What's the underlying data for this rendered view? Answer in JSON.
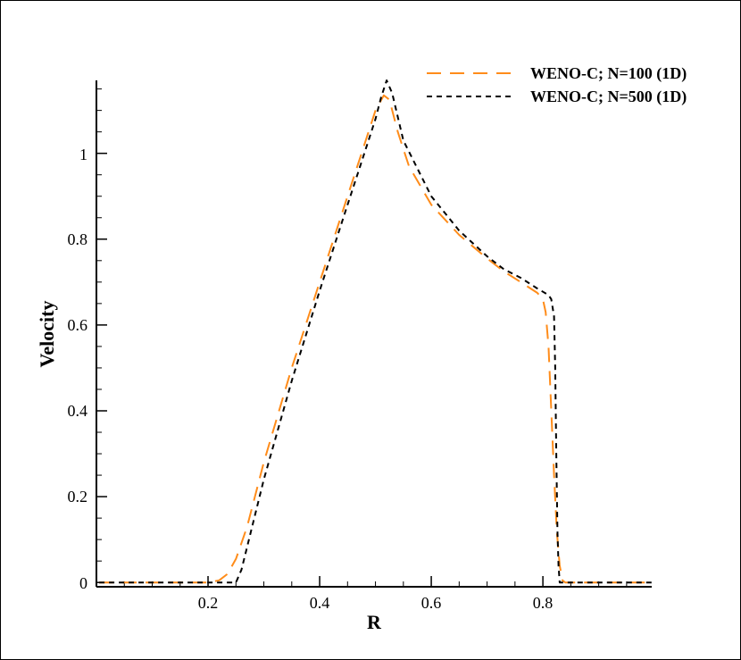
{
  "chart_data": {
    "type": "line",
    "title": "",
    "xlabel": "R",
    "ylabel": "Velocity",
    "xlim": [
      0.0,
      0.995
    ],
    "ylim": [
      -0.01,
      1.17
    ],
    "x_ticks": [
      0.2,
      0.4,
      0.6,
      0.8
    ],
    "x_tick_labels": [
      "0.2",
      "0.4",
      "0.6",
      "0.8"
    ],
    "y_ticks": [
      0,
      0.2,
      0.4,
      0.6,
      0.8,
      1
    ],
    "y_tick_labels": [
      "0",
      "0.2",
      "0.4",
      "0.6",
      "0.8",
      "1"
    ],
    "grid": false,
    "legend_position": "top-right",
    "series": [
      {
        "name": "WENO-C; N=100 (1D)",
        "color": "#ff8c1a",
        "dash": "long-dash",
        "x": [
          0.005,
          0.2,
          0.22,
          0.235,
          0.25,
          0.27,
          0.3,
          0.35,
          0.4,
          0.45,
          0.48,
          0.5,
          0.515,
          0.525,
          0.54,
          0.56,
          0.6,
          0.65,
          0.7,
          0.73,
          0.76,
          0.79,
          0.8,
          0.805,
          0.81,
          0.815,
          0.82,
          0.825,
          0.83,
          0.835,
          0.84,
          0.995
        ],
        "y": [
          0,
          0,
          0.005,
          0.02,
          0.055,
          0.13,
          0.28,
          0.5,
          0.7,
          0.9,
          1.02,
          1.1,
          1.135,
          1.125,
          1.05,
          0.97,
          0.88,
          0.81,
          0.755,
          0.725,
          0.7,
          0.675,
          0.66,
          0.63,
          0.55,
          0.4,
          0.25,
          0.12,
          0.04,
          0.005,
          0,
          0
        ]
      },
      {
        "name": "WENO-C; N=500 (1D)",
        "color": "#000000",
        "dash": "short-dash",
        "x": [
          0.005,
          0.25,
          0.26,
          0.3,
          0.35,
          0.4,
          0.45,
          0.48,
          0.5,
          0.51,
          0.52,
          0.53,
          0.55,
          0.6,
          0.65,
          0.7,
          0.73,
          0.76,
          0.79,
          0.81,
          0.815,
          0.82,
          0.822,
          0.824,
          0.826,
          0.828,
          0.83,
          0.995
        ],
        "y": [
          0,
          0,
          0.03,
          0.24,
          0.47,
          0.68,
          0.88,
          1.0,
          1.08,
          1.13,
          1.17,
          1.14,
          1.03,
          0.9,
          0.82,
          0.76,
          0.73,
          0.71,
          0.685,
          0.67,
          0.66,
          0.62,
          0.5,
          0.3,
          0.12,
          0.04,
          0,
          0
        ]
      }
    ]
  }
}
